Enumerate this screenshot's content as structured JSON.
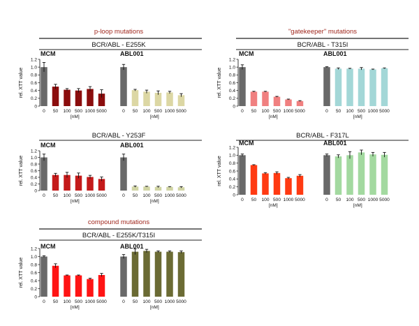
{
  "sections": [
    {
      "title": "p-loop mutations"
    },
    {
      "title": "\"gatekeeper\" mutations"
    },
    {
      "title": "compound mutations"
    }
  ],
  "chart_data": [
    {
      "type": "bar",
      "section_title": "p-loop mutations",
      "title": "BCR/ABL - E255K",
      "ylabel": "rel. XTT value",
      "xlabel": "[nM]",
      "ylim": [
        0,
        1.2
      ],
      "yticks": [
        "0",
        "0.2",
        "0.4",
        "0.6",
        "0.8",
        "1.0",
        "1.2"
      ],
      "categories": [
        "0",
        "50",
        "100",
        "500",
        "1000",
        "5000"
      ],
      "groups": [
        {
          "name": "MCM",
          "colors": [
            "#696969",
            "#8b0d0d"
          ],
          "values": [
            1.0,
            0.5,
            0.42,
            0.4,
            0.44,
            0.32
          ],
          "errors": [
            0.12,
            0.06,
            0.03,
            0.05,
            0.06,
            0.1
          ]
        },
        {
          "name": "ABL001",
          "colors": [
            "#696969",
            "#dcd7a4"
          ],
          "values": [
            1.0,
            0.41,
            0.37,
            0.34,
            0.35,
            0.28
          ],
          "errors": [
            0.07,
            0.02,
            0.04,
            0.05,
            0.03,
            0.04
          ]
        }
      ]
    },
    {
      "type": "bar",
      "section_title": "\"gatekeeper\" mutations",
      "title": "BCR/ABL - T315I",
      "ylabel": "rel. XTT value",
      "xlabel": "[nM]",
      "ylim": [
        0,
        1.2
      ],
      "yticks": [
        "0",
        "0.2",
        "0.4",
        "0.6",
        "0.8",
        "1.0",
        "1.2"
      ],
      "categories": [
        "0",
        "50",
        "100",
        "500",
        "1000",
        "5000"
      ],
      "groups": [
        {
          "name": "MCM",
          "colors": [
            "#696969",
            "#f08080"
          ],
          "values": [
            1.0,
            0.37,
            0.37,
            0.24,
            0.17,
            0.13
          ],
          "errors": [
            0.06,
            0.01,
            0.01,
            0.01,
            0.01,
            0.01
          ]
        },
        {
          "name": "ABL001",
          "colors": [
            "#696969",
            "#a3d7d7"
          ],
          "values": [
            1.0,
            0.96,
            0.96,
            0.96,
            0.94,
            0.97
          ],
          "errors": [
            0.01,
            0.02,
            0.01,
            0.03,
            0.01,
            0.01
          ]
        }
      ]
    },
    {
      "type": "bar",
      "title": "BCR/ABL - Y253F",
      "ylabel": "rel. XTT value",
      "xlabel": "[nM]",
      "ylim": [
        0,
        1.2
      ],
      "yticks": [
        "0",
        "0.2",
        "0.4",
        "0.6",
        "0.8",
        "1.0",
        "1.2"
      ],
      "categories": [
        "0",
        "50",
        "100",
        "500",
        "1000",
        "5000"
      ],
      "groups": [
        {
          "name": "MCM",
          "colors": [
            "#696969",
            "#c41a1a"
          ],
          "values": [
            1.0,
            0.47,
            0.47,
            0.45,
            0.41,
            0.35
          ],
          "errors": [
            0.1,
            0.05,
            0.08,
            0.08,
            0.05,
            0.06
          ]
        },
        {
          "name": "ABL001",
          "colors": [
            "#696969",
            "#d0d4a3"
          ],
          "values": [
            1.0,
            0.12,
            0.12,
            0.11,
            0.11,
            0.1
          ],
          "errors": [
            0.1,
            0.02,
            0.01,
            0.02,
            0.01,
            0.02
          ]
        }
      ]
    },
    {
      "type": "bar",
      "title": "BCR/ABL - F317L",
      "ylabel": "rel. XTT value",
      "xlabel": "[nM]",
      "ylim": [
        0,
        1.2
      ],
      "yticks": [
        "0",
        "0.2",
        "0.4",
        "0.6",
        "0.8",
        "1.0",
        "1.2"
      ],
      "categories": [
        "0",
        "50",
        "100",
        "500",
        "1000",
        "5000"
      ],
      "groups": [
        {
          "name": "MCM",
          "colors": [
            "#696969",
            "#ff3a12"
          ],
          "values": [
            1.0,
            0.75,
            0.54,
            0.55,
            0.42,
            0.48
          ],
          "errors": [
            0.03,
            0.01,
            0.02,
            0.03,
            0.02,
            0.03
          ]
        },
        {
          "name": "ABL001",
          "colors": [
            "#696969",
            "#a3d9a0"
          ],
          "values": [
            1.0,
            0.97,
            1.0,
            1.07,
            1.02,
            1.01
          ],
          "errors": [
            0.03,
            0.04,
            0.09,
            0.06,
            0.05,
            0.06
          ]
        }
      ]
    },
    {
      "type": "bar",
      "section_title": "compound mutations",
      "title": "BCR/ABL - E255K/T315I",
      "ylabel": "rel. XTT value",
      "xlabel": "[nM]",
      "ylim": [
        0,
        1.2
      ],
      "yticks": [
        "0",
        "0.2",
        "0.4",
        "0.6",
        "0.8",
        "1.0",
        "1.2"
      ],
      "categories": [
        "0",
        "50",
        "100",
        "500",
        "1000",
        "5000"
      ],
      "groups": [
        {
          "name": "MCM",
          "colors": [
            "#696969",
            "#ff1414"
          ],
          "values": [
            1.0,
            0.77,
            0.53,
            0.53,
            0.44,
            0.54
          ],
          "errors": [
            0.02,
            0.05,
            0.01,
            0.01,
            0.02,
            0.04
          ]
        },
        {
          "name": "ABL001",
          "colors": [
            "#696969",
            "#6b6b34"
          ],
          "values": [
            1.0,
            1.12,
            1.14,
            1.12,
            1.12,
            1.11
          ],
          "errors": [
            0.05,
            0.07,
            0.04,
            0.02,
            0.02,
            0.03
          ]
        }
      ]
    }
  ]
}
